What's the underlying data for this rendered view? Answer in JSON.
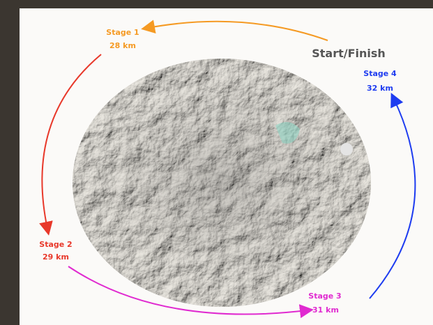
{
  "start_finish": "Start/Finish",
  "stages": [
    {
      "name": "Stage 1",
      "distance": "28 km"
    },
    {
      "name": "Stage 2",
      "distance": "29 km"
    },
    {
      "name": "Stage 3",
      "distance": "31 km"
    },
    {
      "name": "Stage 4",
      "distance": "32 km"
    }
  ]
}
